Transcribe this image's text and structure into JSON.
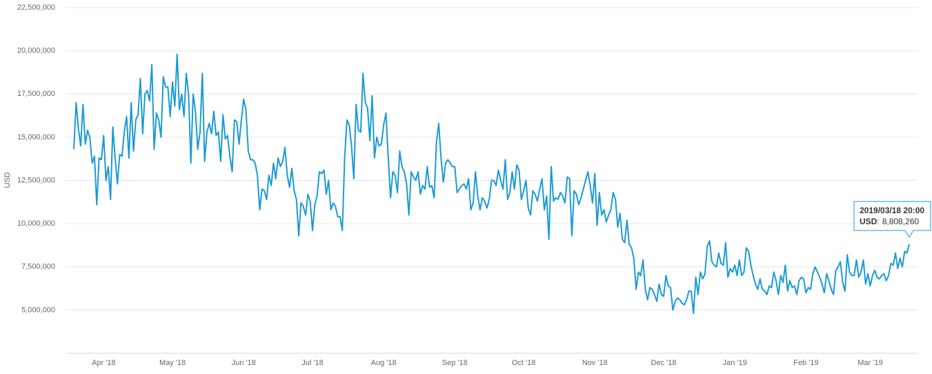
{
  "chart_data": {
    "type": "line",
    "y_label": "USD",
    "categories": [
      null,
      null,
      null,
      null,
      null,
      null,
      null,
      null,
      null,
      null,
      null,
      null,
      null,
      "Apr '18",
      null,
      null,
      null,
      null,
      null,
      null,
      null,
      null,
      null,
      null,
      null,
      null,
      null,
      null,
      null,
      null,
      null,
      null,
      null,
      null,
      null,
      null,
      null,
      null,
      null,
      null,
      null,
      null,
      null,
      "May '18",
      null,
      null,
      null,
      null,
      null,
      null,
      null,
      null,
      null,
      null,
      null,
      null,
      null,
      null,
      null,
      null,
      null,
      null,
      null,
      null,
      null,
      null,
      null,
      null,
      null,
      null,
      null,
      null,
      null,
      null,
      "Jun '18",
      null,
      null,
      null,
      null,
      null,
      null,
      null,
      null,
      null,
      null,
      null,
      null,
      null,
      null,
      null,
      null,
      null,
      null,
      null,
      null,
      null,
      null,
      null,
      null,
      null,
      null,
      null,
      null,
      null,
      "Jul '18",
      null,
      null,
      null,
      null,
      null,
      null,
      null,
      null,
      null,
      null,
      null,
      null,
      null,
      null,
      null,
      null,
      null,
      null,
      null,
      null,
      null,
      null,
      null,
      null,
      null,
      null,
      null,
      null,
      null,
      null,
      "Aug '18",
      null,
      null,
      null,
      null,
      null,
      null,
      null,
      null,
      null,
      null,
      null,
      null,
      null,
      null,
      null,
      null,
      null,
      null,
      null,
      null,
      null,
      null,
      null,
      null,
      null,
      null,
      null,
      null,
      null,
      null,
      "Sep '18",
      null,
      null,
      null,
      null,
      null,
      null,
      null,
      null,
      null,
      null,
      null,
      null,
      null,
      null,
      null,
      null,
      null,
      null,
      null,
      null,
      null,
      null,
      null,
      null,
      null,
      null,
      null,
      null,
      null,
      "Oct '18",
      null,
      null,
      null,
      null,
      null,
      null,
      null,
      null,
      null,
      null,
      null,
      null,
      null,
      null,
      null,
      null,
      null,
      null,
      null,
      null,
      null,
      null,
      null,
      null,
      null,
      null,
      null,
      null,
      null,
      null,
      "Nov '18",
      null,
      null,
      null,
      null,
      null,
      null,
      null,
      null,
      null,
      null,
      null,
      null,
      null,
      null,
      null,
      null,
      null,
      null,
      null,
      null,
      null,
      null,
      null,
      null,
      null,
      null,
      null,
      null,
      null,
      "Dec '18",
      null,
      null,
      null,
      null,
      null,
      null,
      null,
      null,
      null,
      null,
      null,
      null,
      null,
      null,
      null,
      null,
      null,
      null,
      null,
      null,
      null,
      null,
      null,
      null,
      null,
      null,
      null,
      null,
      null,
      null,
      "Jan '19",
      null,
      null,
      null,
      null,
      null,
      null,
      null,
      null,
      null,
      null,
      null,
      null,
      null,
      null,
      null,
      null,
      null,
      null,
      null,
      null,
      null,
      null,
      null,
      null,
      null,
      null,
      null,
      null,
      null,
      null,
      "Feb '19",
      null,
      null,
      null,
      null,
      null,
      null,
      null,
      null,
      null,
      null,
      null,
      null,
      null,
      null,
      null,
      null,
      null,
      null,
      null,
      null,
      null,
      null,
      null,
      null,
      null,
      null,
      null,
      "Mar '19",
      null,
      null,
      null,
      null,
      null,
      null,
      null,
      null,
      null,
      null,
      null,
      null,
      null,
      null,
      null,
      null,
      null
    ],
    "series": [
      {
        "name": "USD",
        "color": "#1a9ad6",
        "values": [
          14300000,
          17000000,
          15500000,
          14500000,
          16900000,
          14600000,
          15400000,
          15000000,
          13500000,
          13900000,
          11100000,
          13800000,
          13700000,
          15100000,
          12500000,
          13300000,
          11400000,
          15600000,
          13800000,
          12300000,
          14000000,
          13900000,
          15300000,
          16200000,
          13800000,
          17000000,
          14200000,
          16000000,
          16300000,
          18400000,
          15200000,
          17500000,
          17700000,
          17100000,
          19200000,
          14300000,
          16400000,
          16000000,
          15000000,
          18500000,
          17900000,
          17900000,
          16200000,
          18200000,
          16800000,
          19800000,
          16600000,
          17500000,
          16200000,
          18700000,
          17500000,
          13500000,
          17500000,
          16500000,
          14300000,
          15300000,
          18700000,
          13600000,
          15300000,
          15800000,
          15200000,
          16500000,
          15100000,
          15300000,
          13600000,
          16300000,
          14900000,
          15100000,
          13900000,
          13000000,
          16000000,
          15900000,
          14600000,
          16000000,
          17200000,
          16600000,
          14200000,
          13700000,
          13700000,
          13500000,
          12800000,
          10800000,
          12000000,
          11900000,
          11400000,
          12800000,
          12200000,
          13500000,
          12600000,
          13800000,
          13300000,
          13600000,
          14400000,
          12800000,
          12100000,
          13200000,
          11900000,
          11400000,
          9300000,
          11200000,
          11000000,
          10500000,
          11700000,
          11300000,
          9600000,
          11100000,
          11600000,
          13000000,
          12900000,
          13100000,
          11700000,
          12500000,
          10800000,
          11200000,
          11000000,
          10400000,
          10400000,
          9600000,
          13800000,
          16000000,
          15700000,
          14500000,
          12600000,
          16900000,
          15400000,
          15300000,
          18700000,
          17000000,
          16700000,
          14800000,
          17400000,
          13800000,
          15000000,
          14500000,
          14600000,
          15700000,
          16400000,
          13800000,
          11500000,
          13000000,
          12800000,
          11800000,
          14200000,
          13300000,
          13000000,
          12300000,
          10500000,
          13000000,
          12700000,
          12500000,
          13000000,
          11700000,
          12200000,
          12000000,
          13300000,
          12100000,
          12200000,
          11500000,
          14700000,
          15800000,
          13800000,
          12400000,
          13500000,
          13700000,
          13500000,
          13300000,
          13300000,
          11800000,
          12000000,
          12200000,
          12300000,
          12000000,
          12600000,
          10800000,
          11200000,
          13000000,
          11600000,
          10800000,
          11500000,
          11300000,
          10900000,
          11400000,
          12500000,
          12500000,
          12200000,
          13100000,
          12500000,
          12000000,
          13700000,
          11400000,
          11800000,
          13000000,
          12000000,
          13400000,
          13100000,
          11400000,
          11900000,
          12500000,
          10900000,
          10500000,
          11900000,
          11700000,
          11300000,
          12000000,
          12600000,
          10800000,
          11600000,
          9100000,
          13300000,
          11300000,
          11500000,
          11400000,
          11800000,
          11600000,
          11200000,
          12700000,
          12600000,
          9300000,
          11900000,
          11700000,
          11100000,
          11500000,
          12000000,
          12500000,
          13000000,
          12200000,
          11200000,
          12900000,
          9900000,
          11800000,
          10500000,
          10800000,
          10100000,
          10500000,
          10800000,
          11800000,
          11400000,
          9800000,
          10600000,
          9100000,
          8900000,
          10200000,
          8800000,
          8600000,
          8000000,
          6200000,
          7200000,
          7000000,
          7900000,
          6200000,
          5600000,
          6300000,
          6200000,
          5900000,
          5500000,
          6500000,
          5900000,
          5800000,
          7000000,
          6400000,
          6300000,
          5000000,
          5500000,
          5700000,
          5600000,
          5400000,
          5300000,
          5600000,
          6100000,
          6100000,
          4800000,
          6900000,
          5900000,
          7200000,
          6800000,
          7100000,
          8700000,
          9000000,
          7800000,
          7600000,
          7500000,
          8300000,
          7700000,
          7600000,
          8900000,
          6900000,
          7400000,
          7200000,
          7600000,
          7000000,
          7900000,
          7000000,
          7200000,
          8600000,
          8400000,
          7600000,
          7000000,
          6500000,
          6200000,
          6800000,
          6200000,
          6100000,
          5900000,
          6400000,
          6300000,
          7200000,
          6700000,
          5900000,
          7000000,
          6600000,
          7600000,
          6100000,
          6700000,
          6300000,
          6400000,
          5900000,
          6700000,
          6900000,
          6800000,
          6000000,
          6300000,
          6200000,
          7100000,
          7500000,
          7200000,
          6900000,
          6500000,
          6000000,
          7100000,
          6700000,
          6200000,
          5900000,
          7300000,
          7500000,
          7800000,
          6600000,
          6100000,
          8200000,
          7200000,
          7000000,
          7000000,
          7900000,
          6900000,
          7200000,
          7900000,
          6500000,
          7100000,
          6400000,
          7000000,
          7300000,
          6900000,
          6800000,
          7000000,
          7100000,
          6700000,
          7000000,
          7700000,
          7600000,
          8300000,
          7400000,
          8000000,
          7500000,
          8400000,
          8300000,
          8808260
        ]
      }
    ],
    "ylim": [
      2500000,
      22500000
    ],
    "yticks": [
      {
        "value": 5000000,
        "label": "5,000,000"
      },
      {
        "value": 7500000,
        "label": "7,500,000"
      },
      {
        "value": 10000000,
        "label": "10,000,000"
      },
      {
        "value": 12500000,
        "label": "12,500,000"
      },
      {
        "value": 15000000,
        "label": "15,000,000"
      },
      {
        "value": 17500000,
        "label": "17,500,000"
      },
      {
        "value": 20000000,
        "label": "20,000,000"
      },
      {
        "value": 22500000,
        "label": "22,500,000"
      }
    ],
    "grid": true,
    "tooltip": {
      "title": "2019/03/18 20:00",
      "separator": ":",
      "value_label": "8,808,260"
    }
  }
}
